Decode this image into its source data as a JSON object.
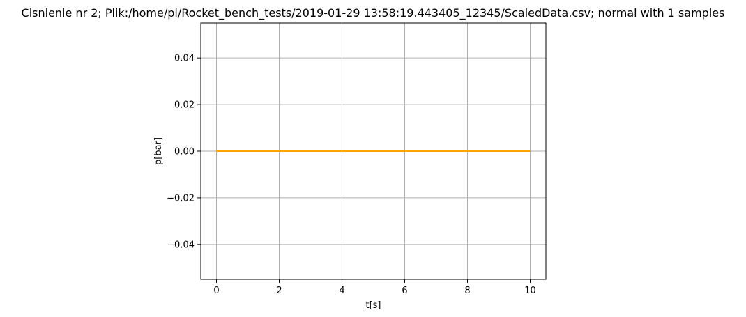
{
  "chart_data": {
    "type": "line",
    "title": "Cisnienie nr 2; Plik:/home/pi/Rocket_bench_tests/2019-01-29 13:58:19.443405_12345/ScaledData.csv; normal with 1 samples",
    "xlabel": "t[s]",
    "ylabel": "p[bar]",
    "xlim": [
      -0.5,
      10.5
    ],
    "ylim": [
      -0.055,
      0.055
    ],
    "xticks": [
      0,
      2,
      4,
      6,
      8,
      10
    ],
    "xtick_labels": [
      "0",
      "2",
      "4",
      "6",
      "8",
      "10"
    ],
    "yticks": [
      0.04,
      0.02,
      0.0,
      -0.02,
      -0.04
    ],
    "ytick_labels": [
      "0.04",
      "0.02",
      "0.00",
      "−0.02",
      "−0.04"
    ],
    "grid": true,
    "series": [
      {
        "color": "#ffa500",
        "x": [
          0,
          10
        ],
        "y": [
          0,
          0
        ]
      }
    ]
  }
}
